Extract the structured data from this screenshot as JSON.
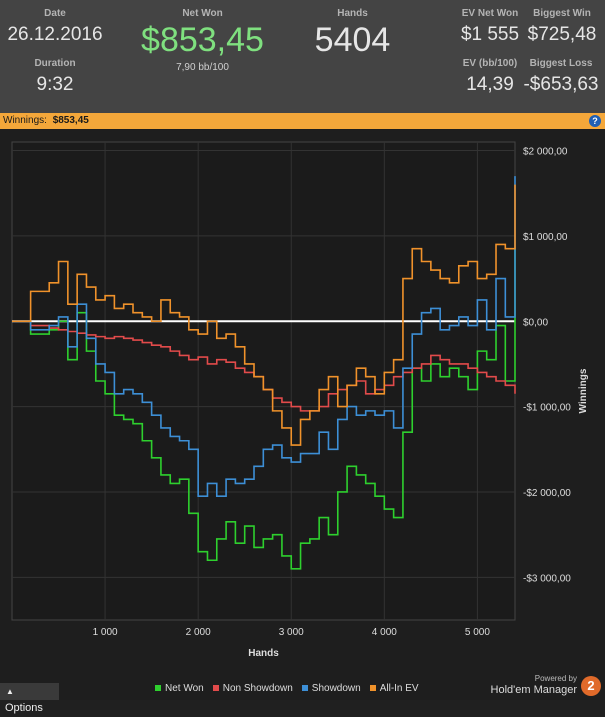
{
  "stats": {
    "date": {
      "label": "Date",
      "value": "26.12.2016"
    },
    "duration": {
      "label": "Duration",
      "value": "9:32"
    },
    "net_won": {
      "label": "Net Won",
      "value": "$853,45",
      "sub": "7,90 bb/100"
    },
    "hands": {
      "label": "Hands",
      "value": "5404"
    },
    "ev_net_won": {
      "label": "EV Net Won",
      "value": "$1 555"
    },
    "ev_bb100": {
      "label": "EV (bb/100)",
      "value": "14,39"
    },
    "biggest_win": {
      "label": "Biggest Win",
      "value": "$725,48"
    },
    "biggest_loss": {
      "label": "Biggest Loss",
      "value": "-$653,63"
    }
  },
  "winnings_bar": {
    "label": "Winnings:",
    "value": "$853,45",
    "help_icon": "?"
  },
  "colors": {
    "net_won": "#2ed02e",
    "non_showdown": "#e24b4b",
    "showdown": "#3d8fd6",
    "allin_ev": "#f0922b",
    "accent_green": "#7fe07f",
    "bar": "#f4a73a"
  },
  "chart_data": {
    "type": "line",
    "xlabel": "Hands",
    "ylabel": "Winnings",
    "xlim": [
      0,
      5404
    ],
    "ylim": [
      -3500,
      2100
    ],
    "x_ticks": [
      1000,
      2000,
      3000,
      4000,
      5000
    ],
    "x_tick_labels": [
      "1 000",
      "2 000",
      "3 000",
      "4 000",
      "5 000"
    ],
    "y_ticks": [
      2000,
      1000,
      0,
      -1000,
      -2000,
      -3000
    ],
    "y_tick_labels": [
      "$2 000,00",
      "$1 000,00",
      "$0,00",
      "-$1 000,00",
      "-$2 000,00",
      "-$3 000,00"
    ],
    "grid": true,
    "legend_position": "bottom",
    "x": [
      0,
      200,
      400,
      500,
      600,
      700,
      800,
      900,
      1000,
      1100,
      1200,
      1300,
      1400,
      1500,
      1600,
      1700,
      1800,
      1900,
      2000,
      2100,
      2200,
      2300,
      2400,
      2500,
      2600,
      2700,
      2800,
      2900,
      3000,
      3100,
      3200,
      3300,
      3400,
      3500,
      3600,
      3700,
      3800,
      3900,
      4000,
      4100,
      4200,
      4300,
      4400,
      4500,
      4600,
      4700,
      4800,
      4900,
      5000,
      5100,
      5200,
      5300,
      5404
    ],
    "series": [
      {
        "name": "Net Won",
        "color": "#2ed02e",
        "values": [
          0,
          -150,
          -100,
          0,
          -450,
          100,
          -350,
          -700,
          -850,
          -1100,
          -1150,
          -1200,
          -1400,
          -1600,
          -1800,
          -1900,
          -1850,
          -2250,
          -2700,
          -2800,
          -2550,
          -2350,
          -2600,
          -2400,
          -2650,
          -2550,
          -2500,
          -2750,
          -2900,
          -2600,
          -2550,
          -2300,
          -2500,
          -2000,
          -1700,
          -1800,
          -1900,
          -2050,
          -2200,
          -2300,
          -1300,
          -550,
          -700,
          -500,
          -650,
          -550,
          -650,
          -800,
          -350,
          -450,
          -50,
          -700,
          853
        ]
      },
      {
        "name": "Non Showdown",
        "color": "#e24b4b",
        "values": [
          0,
          -50,
          -80,
          -100,
          -120,
          -140,
          -160,
          -180,
          -200,
          -180,
          -200,
          -220,
          -250,
          -280,
          -300,
          -350,
          -400,
          -450,
          -420,
          -500,
          -450,
          -480,
          -550,
          -600,
          -650,
          -800,
          -900,
          -950,
          -1000,
          -1050,
          -1050,
          -1000,
          -850,
          -800,
          -750,
          -700,
          -850,
          -800,
          -750,
          -650,
          -600,
          -550,
          -500,
          -400,
          -450,
          -500,
          -500,
          -550,
          -600,
          -650,
          -700,
          -750,
          -850
        ]
      },
      {
        "name": "Showdown",
        "color": "#3d8fd6",
        "values": [
          0,
          -100,
          -50,
          50,
          -300,
          200,
          -200,
          -500,
          -600,
          -850,
          -800,
          -850,
          -950,
          -1100,
          -1250,
          -1350,
          -1400,
          -1500,
          -2050,
          -1900,
          -2050,
          -1850,
          -1900,
          -1850,
          -1700,
          -1500,
          -1450,
          -1600,
          -1650,
          -1550,
          -1550,
          -1300,
          -1500,
          -1150,
          -1000,
          -1100,
          -1050,
          -1100,
          -1050,
          -1250,
          -550,
          -150,
          100,
          150,
          -100,
          -50,
          50,
          -50,
          250,
          -100,
          500,
          50,
          1700
        ]
      },
      {
        "name": "All-In EV",
        "color": "#f0922b",
        "values": [
          0,
          350,
          450,
          700,
          200,
          550,
          400,
          250,
          300,
          150,
          200,
          100,
          50,
          0,
          250,
          100,
          50,
          -100,
          -150,
          0,
          -200,
          -150,
          -300,
          -500,
          -650,
          -800,
          -1050,
          -1250,
          -1450,
          -1150,
          -1050,
          -800,
          -650,
          -1000,
          -750,
          -550,
          -650,
          -850,
          -600,
          -450,
          500,
          850,
          700,
          600,
          500,
          450,
          650,
          700,
          500,
          550,
          900,
          850,
          1600
        ]
      }
    ]
  },
  "legend": [
    {
      "label": "Net Won",
      "color": "#2ed02e"
    },
    {
      "label": "Non Showdown",
      "color": "#e24b4b"
    },
    {
      "label": "Showdown",
      "color": "#3d8fd6"
    },
    {
      "label": "All-In EV",
      "color": "#f0922b"
    }
  ],
  "footer": {
    "options_label": "Options",
    "powered_by": "Powered by",
    "brand": "Hold'em Manager",
    "brand_badge": "2"
  }
}
